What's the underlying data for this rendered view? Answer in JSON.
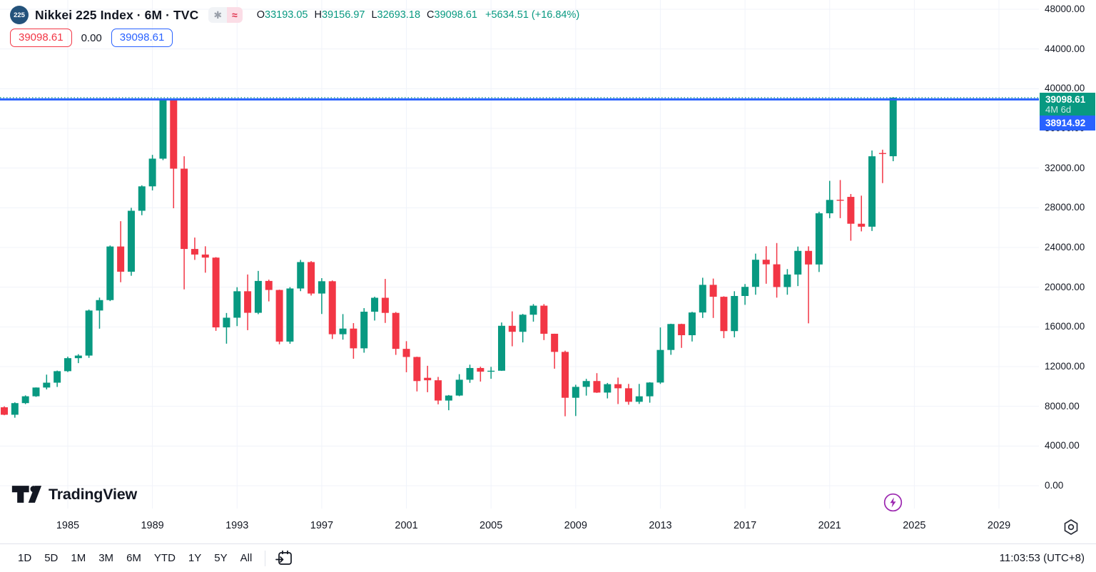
{
  "header": {
    "badge": "225",
    "title": "Nikkei 225 Index · 6M · TVC",
    "flags": {
      "star": "✱",
      "approx": "≈"
    },
    "ohlc": [
      {
        "label": "O",
        "value": "33193.05"
      },
      {
        "label": "H",
        "value": "39156.97"
      },
      {
        "label": "L",
        "value": "32693.18"
      },
      {
        "label": "C",
        "value": "39098.61"
      }
    ],
    "change": "+5634.51 (+16.84%)"
  },
  "quote_row": {
    "sell": "39098.61",
    "spread": "0.00",
    "buy": "39098.61"
  },
  "price_tags": {
    "last": "39098.61",
    "countdown": "4M 6d",
    "hline": "38914.92"
  },
  "logo_text": "TradingView",
  "toolbar": {
    "ranges": [
      "1D",
      "5D",
      "1M",
      "3M",
      "6M",
      "YTD",
      "1Y",
      "5Y",
      "All"
    ],
    "clock": "11:03:53 (UTC+8)"
  },
  "colors": {
    "up": "#089981",
    "down": "#f23645",
    "blue": "#2962ff",
    "purple": "#9c27b0",
    "text": "#131722",
    "grid": "#f0f3fa"
  },
  "chart_data": {
    "type": "candlestick",
    "title": "Nikkei 225 Index",
    "interval": "6M",
    "exchange": "TVC",
    "ylim": [
      0,
      48000
    ],
    "y_ticks": [
      "0.00",
      "4000.00",
      "8000.00",
      "12000.00",
      "16000.00",
      "20000.00",
      "24000.00",
      "28000.00",
      "32000.00",
      "36000.00",
      "40000.00",
      "44000.00",
      "48000.00"
    ],
    "x_ticks": [
      "1985",
      "1989",
      "1993",
      "1997",
      "2001",
      "2005",
      "2009",
      "2013",
      "2017",
      "2021",
      "2025",
      "2029"
    ],
    "first_year": 1982,
    "last_price": 39098.61,
    "hline_price": 38914.92,
    "grid": true,
    "legend_position": "none",
    "candles": [
      [
        "1982-H1",
        7900,
        8000,
        7100,
        7150
      ],
      [
        "1982-H2",
        7150,
        8400,
        6850,
        8320
      ],
      [
        "1983-H1",
        8320,
        9100,
        8220,
        9010
      ],
      [
        "1983-H2",
        9010,
        9900,
        8950,
        9890
      ],
      [
        "1984-H1",
        9890,
        11190,
        9700,
        10380
      ],
      [
        "1984-H2",
        10380,
        11600,
        9950,
        11540
      ],
      [
        "1985-H1",
        11540,
        13000,
        11450,
        12850
      ],
      [
        "1985-H2",
        12850,
        13250,
        12350,
        13110
      ],
      [
        "1986-H1",
        13110,
        17750,
        12880,
        17650
      ],
      [
        "1986-H2",
        17650,
        18950,
        15820,
        18700
      ],
      [
        "1987-H1",
        18700,
        24200,
        18600,
        24100
      ],
      [
        "1987-H2",
        24100,
        26650,
        20500,
        21560
      ],
      [
        "1988-H1",
        21560,
        28000,
        21150,
        27700
      ],
      [
        "1988-H2",
        27700,
        30264,
        27250,
        30159
      ],
      [
        "1989-H1",
        30159,
        33330,
        29750,
        32950
      ],
      [
        "1989-H2",
        32950,
        38957,
        32800,
        38916
      ],
      [
        "1990-H1",
        38916,
        38950,
        27950,
        31940
      ],
      [
        "1990-H2",
        31940,
        33192,
        19780,
        23850
      ],
      [
        "1991-H1",
        23850,
        25000,
        22750,
        23290
      ],
      [
        "1991-H2",
        23290,
        24120,
        21460,
        22980
      ],
      [
        "1992-H1",
        22980,
        23030,
        15600,
        15950
      ],
      [
        "1992-H2",
        15950,
        17400,
        14310,
        16925
      ],
      [
        "1993-H1",
        16925,
        20000,
        16080,
        19590
      ],
      [
        "1993-H2",
        19590,
        21280,
        15670,
        17420
      ],
      [
        "1994-H1",
        17420,
        21640,
        17280,
        20630
      ],
      [
        "1994-H2",
        20630,
        20760,
        18570,
        19720
      ],
      [
        "1995-H1",
        19720,
        19750,
        14250,
        14520
      ],
      [
        "1995-H2",
        14520,
        20010,
        14300,
        19870
      ],
      [
        "1996-H1",
        19870,
        22750,
        19600,
        22530
      ],
      [
        "1996-H2",
        22530,
        22630,
        19160,
        19360
      ],
      [
        "1997-H1",
        19360,
        20910,
        17300,
        20600
      ],
      [
        "1997-H2",
        20600,
        20680,
        14780,
        15260
      ],
      [
        "1998-H1",
        15260,
        17290,
        14715,
        15830
      ],
      [
        "1998-H2",
        15830,
        16380,
        12790,
        13840
      ],
      [
        "1999-H1",
        13840,
        17890,
        13400,
        17530
      ],
      [
        "1999-H2",
        17530,
        19040,
        16640,
        18934
      ],
      [
        "2000-H1",
        18934,
        20833,
        16400,
        17411
      ],
      [
        "2000-H2",
        17411,
        17500,
        13180,
        13786
      ],
      [
        "2001-H1",
        13786,
        14560,
        11430,
        12969
      ],
      [
        "2001-H2",
        12969,
        13000,
        9500,
        10543
      ],
      [
        "2002-H1",
        10871,
        12081,
        9420,
        10622
      ],
      [
        "2002-H2",
        10622,
        10960,
        8197,
        8579
      ],
      [
        "2003-H1",
        8579,
        9137,
        7603,
        9083
      ],
      [
        "2003-H2",
        9083,
        11238,
        9020,
        10677
      ],
      [
        "2004-H1",
        10677,
        12195,
        10365,
        11859
      ],
      [
        "2004-H2",
        11859,
        11990,
        10490,
        11489
      ],
      [
        "2005-H1",
        11489,
        11975,
        10770,
        11584
      ],
      [
        "2005-H2",
        11584,
        16445,
        11565,
        16111
      ],
      [
        "2006-H1",
        16111,
        17563,
        14045,
        15505
      ],
      [
        "2006-H2",
        15505,
        17310,
        14437,
        17226
      ],
      [
        "2007-H1",
        17226,
        18300,
        16530,
        18138
      ],
      [
        "2007-H2",
        18138,
        18297,
        14670,
        15308
      ],
      [
        "2008-H1",
        15308,
        15313,
        11788,
        13481
      ],
      [
        "2008-H2",
        13481,
        13603,
        6995,
        8860
      ],
      [
        "2009-H1",
        8860,
        10170,
        7021,
        9958
      ],
      [
        "2009-H2",
        9958,
        10767,
        9076,
        10546
      ],
      [
        "2010-H1",
        10546,
        11339,
        9347,
        9383
      ],
      [
        "2010-H2",
        9383,
        10352,
        8796,
        10229
      ],
      [
        "2011-H1",
        10229,
        10891,
        8227,
        9816
      ],
      [
        "2011-H2",
        9816,
        10255,
        8160,
        8455
      ],
      [
        "2012-H1",
        8455,
        10255,
        8238,
        9007
      ],
      [
        "2012-H2",
        9007,
        10433,
        8365,
        10395
      ],
      [
        "2013-H1",
        10395,
        15943,
        10255,
        13677
      ],
      [
        "2013-H2",
        13677,
        16320,
        13188,
        16291
      ],
      [
        "2014-H1",
        16291,
        16321,
        13885,
        15162
      ],
      [
        "2014-H2",
        15162,
        17520,
        14529,
        17451
      ],
      [
        "2015-H1",
        17451,
        20952,
        16901,
        20236
      ],
      [
        "2015-H2",
        20236,
        20868,
        16901,
        19034
      ],
      [
        "2016-H1",
        19034,
        19085,
        14864,
        15576
      ],
      [
        "2016-H2",
        15576,
        19592,
        14952,
        19114
      ],
      [
        "2017-H1",
        19114,
        20318,
        18224,
        20033
      ],
      [
        "2017-H2",
        20033,
        23382,
        19240,
        22765
      ],
      [
        "2018-H1",
        22765,
        24129,
        20347,
        22305
      ],
      [
        "2018-H2",
        22305,
        24448,
        18948,
        20015
      ],
      [
        "2019-H1",
        20015,
        21823,
        19241,
        21276
      ],
      [
        "2019-H2",
        21276,
        24091,
        20110,
        23657
      ],
      [
        "2020-H1",
        23657,
        24115,
        16358,
        22288
      ],
      [
        "2020-H2",
        22288,
        27602,
        21530,
        27444
      ],
      [
        "2021-H1",
        27444,
        30715,
        26954,
        28792
      ],
      [
        "2021-H2",
        28810,
        30796,
        26954,
        28792
      ],
      [
        "2022-H1",
        29098,
        29389,
        24682,
        26393
      ],
      [
        "2022-H2",
        26393,
        29223,
        25621,
        26095
      ],
      [
        "2023-H1",
        26095,
        33772,
        25662,
        33189
      ],
      [
        "2023-H2",
        33517,
        33853,
        30488,
        33464
      ],
      [
        "2024-H1",
        33193.05,
        39156.97,
        32693.18,
        39098.61
      ]
    ]
  }
}
